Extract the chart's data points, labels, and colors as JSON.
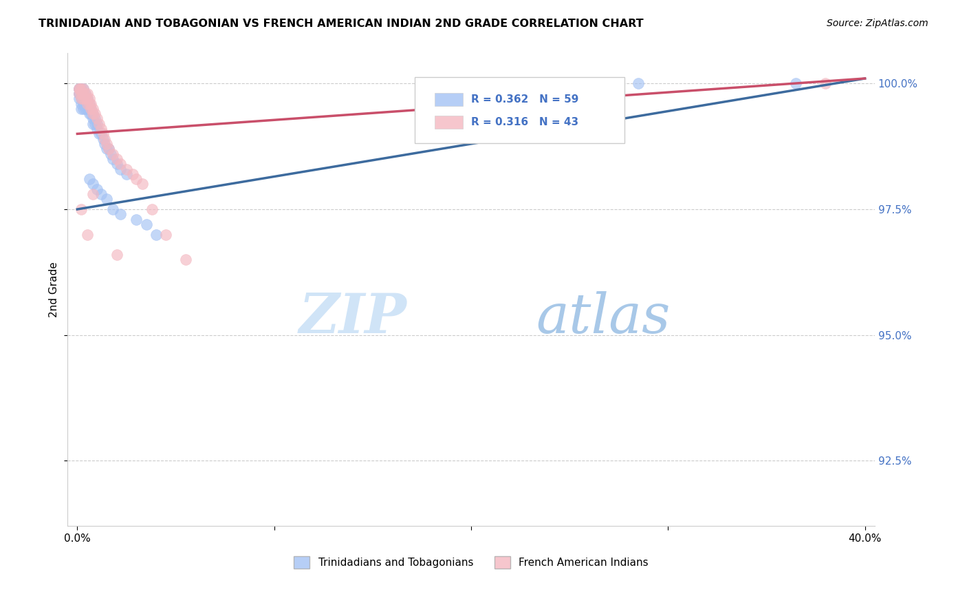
{
  "title": "TRINIDADIAN AND TOBAGONIAN VS FRENCH AMERICAN INDIAN 2ND GRADE CORRELATION CHART",
  "source": "Source: ZipAtlas.com",
  "ylabel": "2nd Grade",
  "legend_blue_label": "Trinidadians and Tobagonians",
  "legend_pink_label": "French American Indians",
  "R_blue": 0.362,
  "N_blue": 59,
  "R_pink": 0.316,
  "N_pink": 43,
  "blue_color": "#a4c2f4",
  "pink_color": "#f4b8c1",
  "blue_line_color": "#3d6b9e",
  "pink_line_color": "#c94f6a",
  "watermark_zip_color": "#c8d8f0",
  "watermark_atlas_color": "#9ab8d8",
  "xlim_min": 0.0,
  "xlim_max": 0.4,
  "ylim_min": 0.912,
  "ylim_max": 1.006,
  "yticks": [
    1.0,
    0.975,
    0.95,
    0.925
  ],
  "ytick_labels": [
    "100.0%",
    "97.5%",
    "95.0%",
    "92.5%"
  ],
  "xtick_labels": [
    "0.0%",
    "",
    "",
    "",
    "40.0%"
  ],
  "blue_x": [
    0.001,
    0.001,
    0.001,
    0.001,
    0.001,
    0.001,
    0.002,
    0.002,
    0.002,
    0.002,
    0.002,
    0.002,
    0.003,
    0.003,
    0.003,
    0.003,
    0.003,
    0.004,
    0.004,
    0.004,
    0.004,
    0.005,
    0.005,
    0.005,
    0.006,
    0.006,
    0.006,
    0.007,
    0.007,
    0.008,
    0.008,
    0.008,
    0.009,
    0.009,
    0.01,
    0.01,
    0.011,
    0.012,
    0.013,
    0.014,
    0.015,
    0.016,
    0.017,
    0.018,
    0.02,
    0.022,
    0.025,
    0.006,
    0.008,
    0.01,
    0.012,
    0.015,
    0.018,
    0.022,
    0.03,
    0.035,
    0.04,
    0.285,
    0.365
  ],
  "blue_y": [
    0.999,
    0.999,
    0.999,
    0.998,
    0.998,
    0.997,
    0.999,
    0.999,
    0.998,
    0.997,
    0.996,
    0.995,
    0.999,
    0.998,
    0.997,
    0.996,
    0.995,
    0.998,
    0.997,
    0.996,
    0.995,
    0.997,
    0.996,
    0.995,
    0.996,
    0.995,
    0.994,
    0.995,
    0.994,
    0.994,
    0.993,
    0.992,
    0.993,
    0.992,
    0.992,
    0.991,
    0.99,
    0.99,
    0.989,
    0.988,
    0.987,
    0.987,
    0.986,
    0.985,
    0.984,
    0.983,
    0.982,
    0.981,
    0.98,
    0.979,
    0.978,
    0.977,
    0.975,
    0.974,
    0.973,
    0.972,
    0.97,
    1.0,
    1.0
  ],
  "pink_x": [
    0.001,
    0.001,
    0.001,
    0.002,
    0.002,
    0.002,
    0.003,
    0.003,
    0.003,
    0.004,
    0.004,
    0.005,
    0.005,
    0.005,
    0.006,
    0.006,
    0.007,
    0.007,
    0.008,
    0.008,
    0.009,
    0.01,
    0.011,
    0.012,
    0.013,
    0.014,
    0.015,
    0.016,
    0.018,
    0.02,
    0.022,
    0.025,
    0.028,
    0.03,
    0.033,
    0.038,
    0.045,
    0.055,
    0.38,
    0.002,
    0.005,
    0.008,
    0.02
  ],
  "pink_y": [
    0.999,
    0.999,
    0.998,
    0.999,
    0.998,
    0.997,
    0.999,
    0.998,
    0.997,
    0.998,
    0.997,
    0.998,
    0.997,
    0.996,
    0.997,
    0.996,
    0.996,
    0.995,
    0.995,
    0.994,
    0.994,
    0.993,
    0.992,
    0.991,
    0.99,
    0.989,
    0.988,
    0.987,
    0.986,
    0.985,
    0.984,
    0.983,
    0.982,
    0.981,
    0.98,
    0.975,
    0.97,
    0.965,
    1.0,
    0.975,
    0.97,
    0.978,
    0.966
  ],
  "blue_line_x": [
    0.0,
    0.4
  ],
  "blue_line_y": [
    0.975,
    1.001
  ],
  "pink_line_x": [
    0.0,
    0.4
  ],
  "pink_line_y": [
    0.99,
    1.001
  ]
}
